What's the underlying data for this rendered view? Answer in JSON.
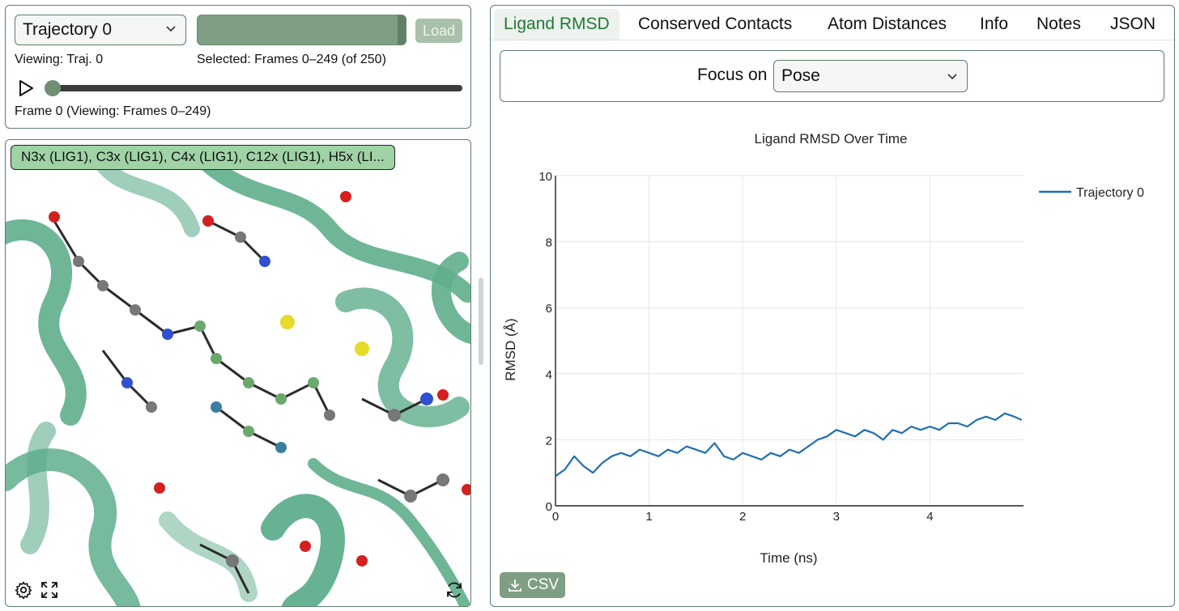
{
  "controls": {
    "trajectory_select": "Trajectory 0",
    "load_label": "Load",
    "viewing_label": "Viewing: Traj. 0",
    "selected_label": "Selected: Frames 0–249 (of 250)",
    "frame_label": "Frame 0 (Viewing: Frames 0–249)",
    "frame_slider_value": 0
  },
  "viewer": {
    "atom_label": "N3x (LIG1), C3x (LIG1), C4x (LIG1), C12x (LIG1), H5x (LI...",
    "icons": [
      "gear-icon",
      "expand-icon",
      "refresh-icon"
    ]
  },
  "tabs": [
    {
      "label": "Ligand RMSD",
      "active": true
    },
    {
      "label": "Conserved Contacts",
      "active": false
    },
    {
      "label": "Atom Distances",
      "active": false
    },
    {
      "label": "Info",
      "active": false
    },
    {
      "label": "Notes",
      "active": false
    },
    {
      "label": "JSON",
      "active": false
    }
  ],
  "focus": {
    "label": "Focus on",
    "value": "Pose"
  },
  "csv_label": "CSV",
  "colors": {
    "accent": "#1f7a35",
    "border": "#5b7f66",
    "series": "#1f6fb2",
    "ribbon": "#5fae8c"
  },
  "chart_data": {
    "type": "line",
    "title": "Ligand RMSD Over Time",
    "xlabel": "Time (ns)",
    "ylabel": "RMSD (Å)",
    "xlim": [
      0,
      5
    ],
    "ylim": [
      0,
      10
    ],
    "xticks": [
      0,
      1,
      2,
      3,
      4
    ],
    "yticks": [
      0,
      2,
      4,
      6,
      8,
      10
    ],
    "grid": true,
    "legend": "top-right",
    "series": [
      {
        "name": "Trajectory 0",
        "color": "#1f6fb2",
        "x": [
          0,
          0.1,
          0.2,
          0.3,
          0.4,
          0.5,
          0.6,
          0.7,
          0.8,
          0.9,
          1.0,
          1.1,
          1.2,
          1.3,
          1.4,
          1.5,
          1.6,
          1.7,
          1.8,
          1.9,
          2.0,
          2.1,
          2.2,
          2.3,
          2.4,
          2.5,
          2.6,
          2.7,
          2.8,
          2.9,
          3.0,
          3.1,
          3.2,
          3.3,
          3.4,
          3.5,
          3.6,
          3.7,
          3.8,
          3.9,
          4.0,
          4.1,
          4.2,
          4.3,
          4.4,
          4.5,
          4.6,
          4.7,
          4.8,
          4.9,
          4.98
        ],
        "y": [
          0.9,
          1.1,
          1.5,
          1.2,
          1.0,
          1.3,
          1.5,
          1.6,
          1.5,
          1.7,
          1.6,
          1.5,
          1.7,
          1.6,
          1.8,
          1.7,
          1.6,
          1.9,
          1.5,
          1.4,
          1.6,
          1.5,
          1.4,
          1.6,
          1.5,
          1.7,
          1.6,
          1.8,
          2.0,
          2.1,
          2.3,
          2.2,
          2.1,
          2.3,
          2.2,
          2.0,
          2.3,
          2.2,
          2.4,
          2.3,
          2.4,
          2.3,
          2.5,
          2.5,
          2.4,
          2.6,
          2.7,
          2.6,
          2.8,
          2.7,
          2.6
        ]
      }
    ]
  }
}
